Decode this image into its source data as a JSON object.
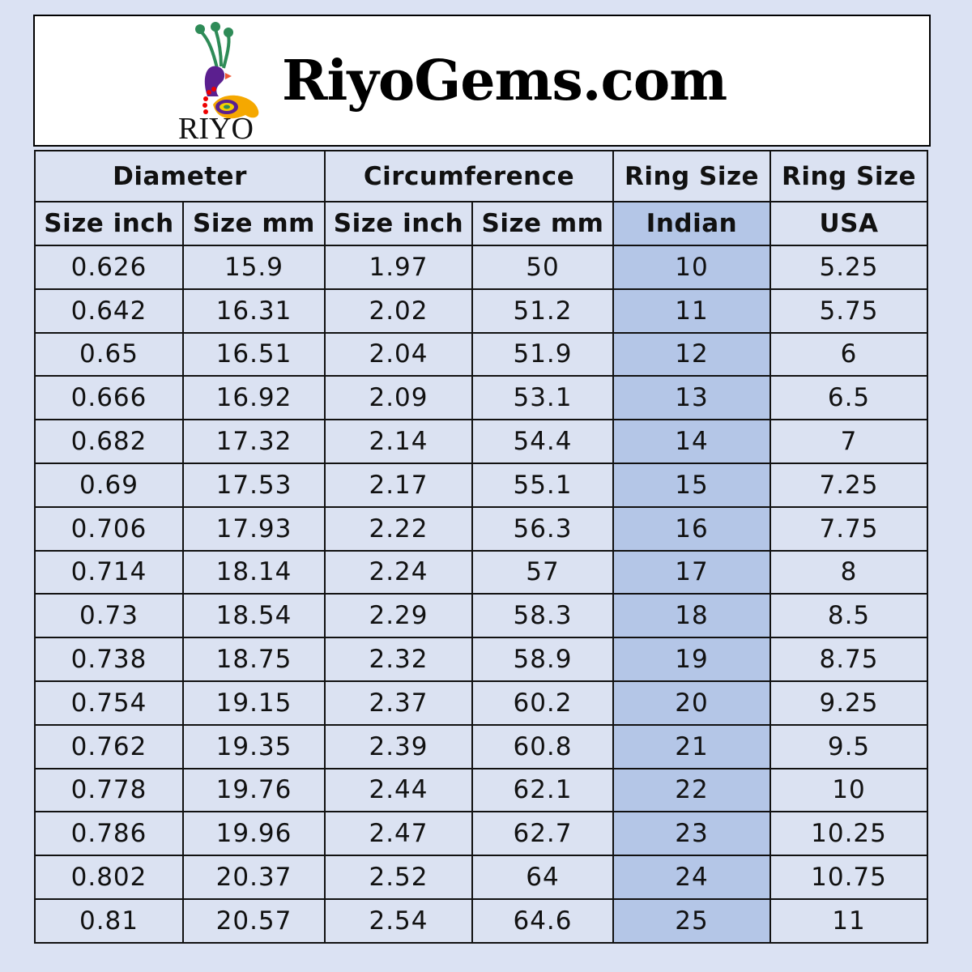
{
  "brand": {
    "name": "RiyoGems.com",
    "logo_text": "RIYO"
  },
  "colors": {
    "background": "#dbe2f3",
    "indian_column": "#b4c6e7"
  },
  "headers": {
    "group": [
      "Diameter",
      "Circumference",
      "Ring Size",
      "Ring Size"
    ],
    "sub": [
      "Size inch",
      "Size mm",
      "Size inch",
      "Size mm",
      "Indian",
      "USA"
    ]
  },
  "rows": [
    [
      "0.626",
      "15.9",
      "1.97",
      "50",
      "10",
      "5.25"
    ],
    [
      "0.642",
      "16.31",
      "2.02",
      "51.2",
      "11",
      "5.75"
    ],
    [
      "0.65",
      "16.51",
      "2.04",
      "51.9",
      "12",
      "6"
    ],
    [
      "0.666",
      "16.92",
      "2.09",
      "53.1",
      "13",
      "6.5"
    ],
    [
      "0.682",
      "17.32",
      "2.14",
      "54.4",
      "14",
      "7"
    ],
    [
      "0.69",
      "17.53",
      "2.17",
      "55.1",
      "15",
      "7.25"
    ],
    [
      "0.706",
      "17.93",
      "2.22",
      "56.3",
      "16",
      "7.75"
    ],
    [
      "0.714",
      "18.14",
      "2.24",
      "57",
      "17",
      "8"
    ],
    [
      "0.73",
      "18.54",
      "2.29",
      "58.3",
      "18",
      "8.5"
    ],
    [
      "0.738",
      "18.75",
      "2.32",
      "58.9",
      "19",
      "8.75"
    ],
    [
      "0.754",
      "19.15",
      "2.37",
      "60.2",
      "20",
      "9.25"
    ],
    [
      "0.762",
      "19.35",
      "2.39",
      "60.8",
      "21",
      "9.5"
    ],
    [
      "0.778",
      "19.76",
      "2.44",
      "62.1",
      "22",
      "10"
    ],
    [
      "0.786",
      "19.96",
      "2.47",
      "62.7",
      "23",
      "10.25"
    ],
    [
      "0.802",
      "20.37",
      "2.52",
      "64",
      "24",
      "10.75"
    ],
    [
      "0.81",
      "20.57",
      "2.54",
      "64.6",
      "25",
      "11"
    ]
  ]
}
